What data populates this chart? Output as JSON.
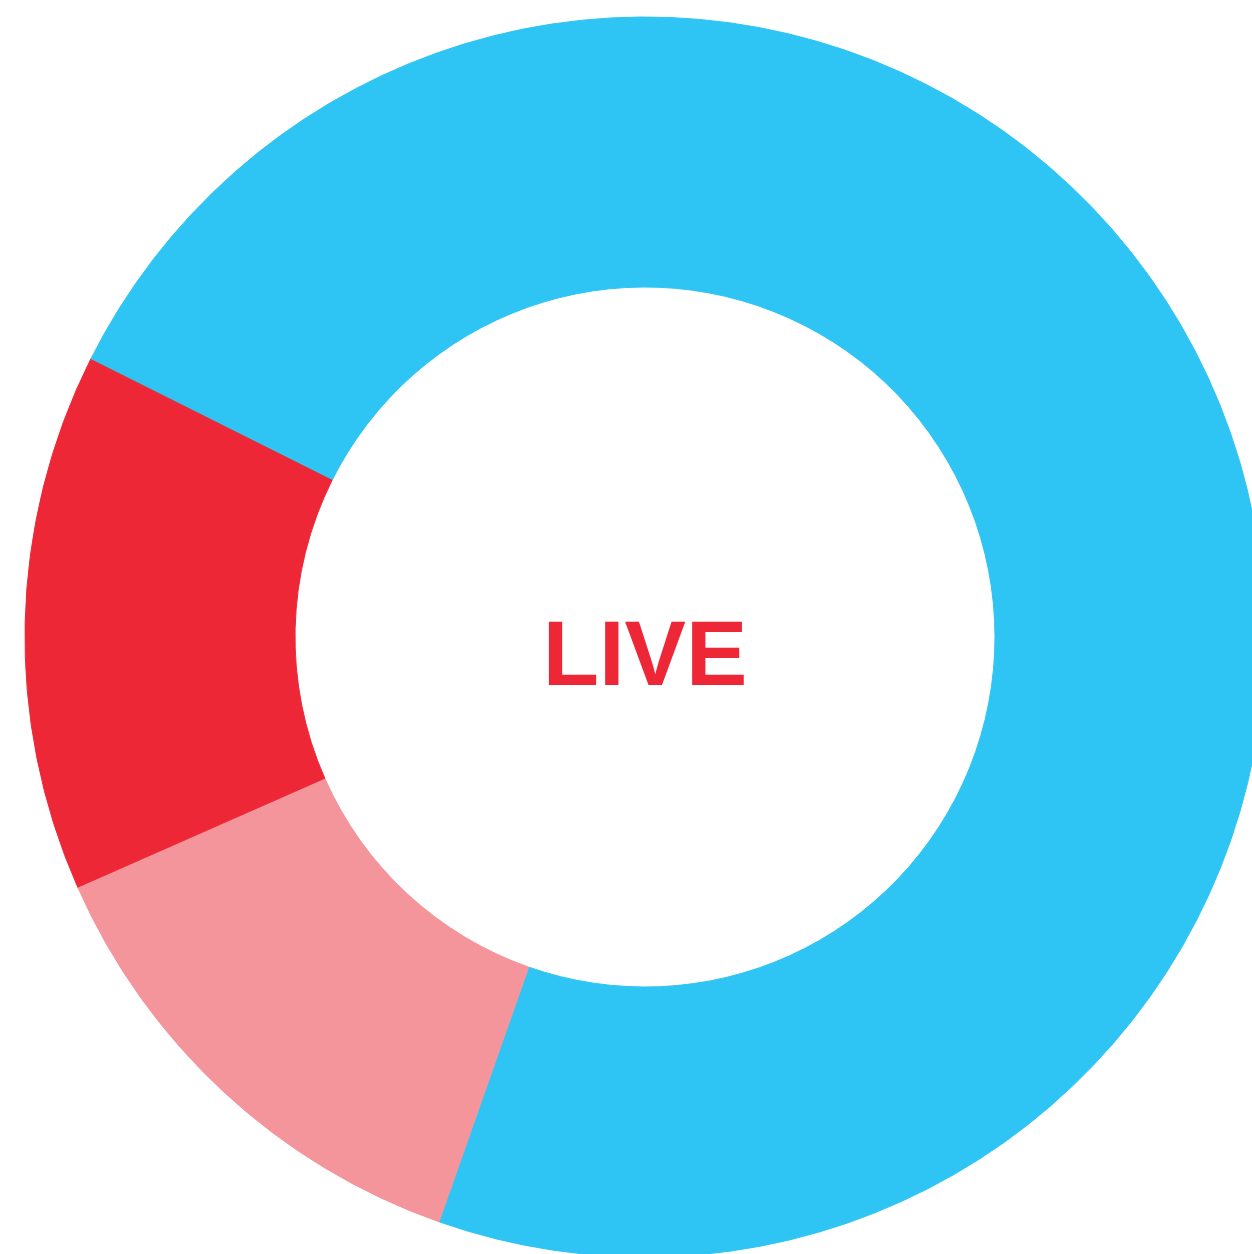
{
  "chart_data": {
    "type": "donut",
    "title": "LIVE",
    "categories": [
      null,
      null,
      null
    ],
    "values": [
      73,
      13,
      14
    ],
    "colors": [
      "#2ec4f3",
      "#f4959b",
      "#ee2737"
    ]
  }
}
